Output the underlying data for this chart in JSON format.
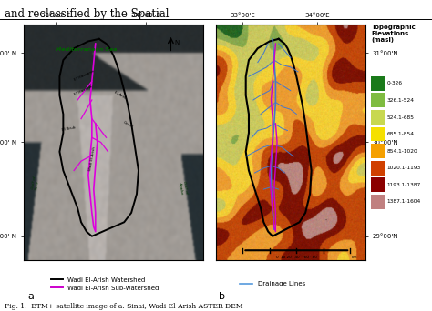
{
  "title_top": "and reclassified by the Spatial",
  "caption": "Fig. 1.  ETM+ satellite image of a. Sinai, Wadi El-Arish ASTER DEM",
  "panel_a_label": "a",
  "panel_b_label": "b",
  "legend_a": [
    {
      "label": "Wadi El-Arish Watershed",
      "color": "#000000"
    },
    {
      "label": "Wadi El-Arish Sub-watershed",
      "color": "#cc00cc"
    }
  ],
  "legend_b_title": "Topographic\nElevations\n(masl)",
  "topo_colors": [
    {
      "label": "0-326",
      "color": "#1a7a1a"
    },
    {
      "label": "326.1-524",
      "color": "#7fbc41"
    },
    {
      "label": "524.1-685",
      "color": "#c8d850"
    },
    {
      "label": "685.1-854",
      "color": "#f5e000"
    },
    {
      "label": "854.1-1020",
      "color": "#f5a000"
    },
    {
      "label": "1020.1-1193",
      "color": "#d04000"
    },
    {
      "label": "1193.1-1387",
      "color": "#8b0000"
    },
    {
      "label": "1387.1-1604",
      "color": "#c08080"
    }
  ],
  "drainage_label": "Drainage Lines",
  "drainage_color": "#5599dd",
  "fig_width": 4.74,
  "fig_height": 3.42,
  "dpi": 100
}
